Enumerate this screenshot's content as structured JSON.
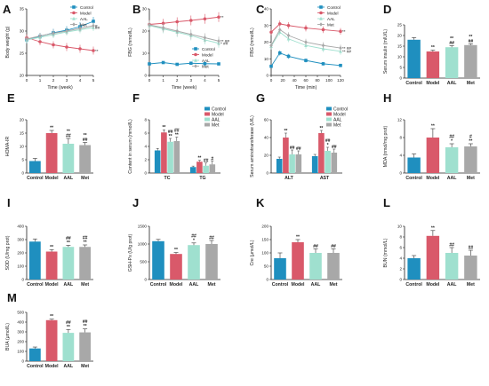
{
  "figure": {
    "colors": {
      "Control": "#1f8fbf",
      "Model": "#d9596a",
      "AAL": "#9fe0cf",
      "Met": "#a8a8a8"
    },
    "groups": [
      "Control",
      "Model",
      "AAL",
      "Met"
    ]
  },
  "chart_data": [
    {
      "panel": "A",
      "type": "line",
      "xlabel": "Time (week)",
      "ylabel": "Body weight (g)",
      "x": [
        0,
        1,
        2,
        3,
        4,
        5
      ],
      "xlim": [
        0,
        5
      ],
      "yticks": [
        20,
        25,
        30,
        35
      ],
      "ylim": [
        20,
        35
      ],
      "legend": "top-right",
      "series": [
        {
          "name": "Control",
          "values": [
            28.0,
            28.8,
            29.6,
            30.2,
            31.0,
            32.2
          ],
          "errors": [
            0.8,
            0.8,
            0.9,
            0.9,
            1.0,
            1.0
          ]
        },
        {
          "name": "Model",
          "values": [
            28.5,
            27.6,
            26.9,
            26.4,
            26.0,
            25.6
          ],
          "errors": [
            0.8,
            0.8,
            0.8,
            0.9,
            0.9,
            0.9
          ]
        },
        {
          "name": "AAL",
          "values": [
            28.0,
            28.6,
            29.2,
            29.8,
            30.3,
            30.8
          ],
          "errors": [
            0.7,
            0.7,
            0.8,
            0.8,
            0.8,
            0.8
          ]
        },
        {
          "name": "Met",
          "values": [
            28.2,
            28.9,
            29.5,
            30.0,
            30.6,
            31.2
          ],
          "errors": [
            0.7,
            0.7,
            0.8,
            0.8,
            0.8,
            0.8
          ]
        }
      ],
      "annotations": [
        {
          "series": "Model",
          "text": "**"
        },
        {
          "series": "AAL",
          "text": "##"
        },
        {
          "series": "Met",
          "text": "#"
        }
      ]
    },
    {
      "panel": "B",
      "type": "line",
      "xlabel": "Time (week)",
      "ylabel": "FBG (mmol/L)",
      "x": [
        0,
        1,
        2,
        3,
        4,
        5
      ],
      "xlim": [
        0,
        5
      ],
      "yticks": [
        0,
        10,
        20,
        30
      ],
      "ylim": [
        0,
        30
      ],
      "legend": "bottom-right",
      "series": [
        {
          "name": "Control",
          "values": [
            5.2,
            5.8,
            5.0,
            5.5,
            5.3,
            5.2
          ],
          "errors": [
            0.4,
            0.4,
            0.4,
            0.4,
            0.4,
            0.4
          ]
        },
        {
          "name": "Model",
          "values": [
            23.0,
            23.5,
            24.2,
            24.8,
            25.5,
            26.3
          ],
          "errors": [
            2.0,
            2.0,
            2.0,
            2.2,
            2.2,
            2.2
          ]
        },
        {
          "name": "AAL",
          "values": [
            22.5,
            21.0,
            19.5,
            18.0,
            16.0,
            14.5
          ],
          "errors": [
            2.0,
            2.0,
            2.2,
            2.2,
            2.0,
            2.0
          ]
        },
        {
          "name": "Met",
          "values": [
            22.8,
            21.5,
            20.0,
            18.5,
            17.0,
            15.5
          ],
          "errors": [
            2.0,
            2.0,
            2.2,
            2.2,
            2.0,
            2.0
          ]
        }
      ],
      "annotations": [
        {
          "series": "Model",
          "text": "**"
        },
        {
          "series": "AAL",
          "text": "* ##"
        },
        {
          "series": "Met",
          "text": "** ##"
        }
      ]
    },
    {
      "panel": "C",
      "type": "line",
      "xlabel": "Time (min)",
      "ylabel": "FBG (mmol/L)",
      "x": [
        0,
        15,
        30,
        60,
        90,
        120
      ],
      "xticks": [
        0,
        20,
        40,
        60,
        80,
        100,
        120
      ],
      "xlim": [
        0,
        120
      ],
      "yticks": [
        0,
        10,
        20,
        30,
        40
      ],
      "ylim": [
        0,
        40
      ],
      "legend": "top-right",
      "series": [
        {
          "name": "Control",
          "values": [
            5.5,
            13.5,
            11.5,
            9.0,
            7.0,
            6.0
          ],
          "errors": [
            1.0,
            1.5,
            1.5,
            1.2,
            1.0,
            1.0
          ]
        },
        {
          "name": "Model",
          "values": [
            26.0,
            31.0,
            30.0,
            28.5,
            27.5,
            26.5
          ],
          "errors": [
            2.0,
            2.0,
            2.0,
            2.0,
            2.0,
            2.0
          ]
        },
        {
          "name": "AAL",
          "values": [
            17.5,
            26.0,
            22.0,
            18.0,
            16.0,
            14.5
          ],
          "errors": [
            2.0,
            2.0,
            2.0,
            2.0,
            2.0,
            2.0
          ]
        },
        {
          "name": "Met",
          "values": [
            18.0,
            27.5,
            24.0,
            20.0,
            18.0,
            16.5
          ],
          "errors": [
            2.0,
            2.0,
            2.0,
            2.0,
            2.0,
            2.0
          ]
        }
      ],
      "annotations": [
        {
          "series": "Model",
          "text": "**"
        },
        {
          "series": "AAL",
          "text": "** ##"
        },
        {
          "series": "Met",
          "text": "** ##"
        }
      ]
    },
    {
      "panel": "D",
      "type": "bar",
      "ylabel": "Serum insulin (mIU/L)",
      "categories": [
        "Control",
        "Model",
        "AAL",
        "Met"
      ],
      "values": [
        18.0,
        12.5,
        14.5,
        15.5
      ],
      "errors": [
        1.0,
        0.6,
        0.7,
        0.6
      ],
      "ylim": [
        0,
        25
      ],
      "yticks": [
        0,
        5,
        10,
        15,
        20,
        25
      ],
      "marks": [
        "",
        "**",
        "**\n##",
        "**\n##"
      ]
    },
    {
      "panel": "E",
      "type": "bar",
      "ylabel": "HOMA-IR",
      "categories": [
        "Control",
        "Model",
        "AAL",
        "Met"
      ],
      "values": [
        4.5,
        15.0,
        11.0,
        10.5
      ],
      "errors": [
        1.0,
        1.0,
        2.0,
        1.0
      ],
      "ylim": [
        0,
        20
      ],
      "yticks": [
        0,
        5,
        10,
        15,
        20
      ],
      "marks": [
        "",
        "**",
        "**\n##",
        "**\n##"
      ]
    },
    {
      "panel": "F",
      "type": "bar",
      "ylabel": "Content in serum (mmol/L)",
      "categories": [
        "TC",
        "TG"
      ],
      "ylim": [
        0,
        8
      ],
      "yticks": [
        0,
        2,
        4,
        6,
        8
      ],
      "legend": "top-right",
      "series": [
        {
          "name": "Control",
          "values": [
            3.4,
            0.9
          ],
          "errors": [
            0.3,
            0.15
          ]
        },
        {
          "name": "Model",
          "values": [
            6.1,
            1.7
          ],
          "errors": [
            0.4,
            0.2
          ]
        },
        {
          "name": "AAL",
          "values": [
            4.7,
            1.1
          ],
          "errors": [
            0.5,
            0.4
          ]
        },
        {
          "name": "Met",
          "values": [
            4.8,
            1.3
          ],
          "errors": [
            0.6,
            0.5
          ]
        }
      ],
      "marks": [
        [
          "",
          "**",
          "##\n**",
          "##\n**"
        ],
        [
          "",
          "**",
          "##",
          "#"
        ]
      ]
    },
    {
      "panel": "G",
      "type": "bar",
      "ylabel": "Serum aminotransferase (U/L)",
      "categories": [
        "ALT",
        "AST"
      ],
      "ylim": [
        0,
        60
      ],
      "yticks": [
        0,
        20,
        40,
        60
      ],
      "legend": "top-right",
      "series": [
        {
          "name": "Control",
          "values": [
            16,
            19
          ],
          "errors": [
            2,
            2
          ]
        },
        {
          "name": "Model",
          "values": [
            40,
            45
          ],
          "errors": [
            5,
            3
          ]
        },
        {
          "name": "AAL",
          "values": [
            21,
            25
          ],
          "errors": [
            5,
            4
          ]
        },
        {
          "name": "Met",
          "values": [
            21,
            23
          ],
          "errors": [
            4,
            4
          ]
        }
      ],
      "marks": [
        [
          "",
          "**",
          "##",
          "##"
        ],
        [
          "",
          "**",
          "##\n*",
          "##"
        ]
      ]
    },
    {
      "panel": "H",
      "type": "bar",
      "ylabel": "MDA (nmol/mg prot)",
      "categories": [
        "Control",
        "Model",
        "AAL",
        "Met"
      ],
      "values": [
        3.5,
        8.0,
        5.8,
        6.0
      ],
      "errors": [
        0.8,
        2.0,
        0.8,
        0.6
      ],
      "ylim": [
        0,
        12
      ],
      "yticks": [
        0,
        4,
        8,
        12
      ],
      "marks": [
        "",
        "**",
        "##\n*",
        "#\n**"
      ]
    },
    {
      "panel": "I",
      "type": "bar",
      "ylabel": "SOD (U/mg prot)",
      "categories": [
        "Control",
        "Model",
        "AAL",
        "Met"
      ],
      "values": [
        285,
        210,
        245,
        245
      ],
      "errors": [
        20,
        15,
        12,
        15
      ],
      "ylim": [
        0,
        400
      ],
      "yticks": [
        0,
        100,
        200,
        300,
        400
      ],
      "marks": [
        "",
        "**",
        "##\n**",
        "##\n**"
      ]
    },
    {
      "panel": "J",
      "type": "bar",
      "ylabel": "GSH-Px (U/g prot)",
      "categories": [
        "Control",
        "Model",
        "AAL",
        "Met"
      ],
      "values": [
        1080,
        720,
        970,
        1000
      ],
      "errors": [
        50,
        40,
        60,
        100
      ],
      "ylim": [
        0,
        1500
      ],
      "yticks": [
        0,
        500,
        1000,
        1500
      ],
      "marks": [
        "",
        "**",
        "##\n*",
        "##"
      ]
    },
    {
      "panel": "K",
      "type": "bar",
      "ylabel": "Cre (μmol/L)",
      "categories": [
        "Control",
        "Model",
        "AAL",
        "Met"
      ],
      "values": [
        80,
        140,
        100,
        100
      ],
      "errors": [
        20,
        10,
        15,
        15
      ],
      "ylim": [
        0,
        200
      ],
      "yticks": [
        0,
        50,
        100,
        150,
        200
      ],
      "marks": [
        "",
        "**",
        "##",
        "##"
      ]
    },
    {
      "panel": "L",
      "type": "bar",
      "ylabel": "BUN (mmol/L)",
      "categories": [
        "Control",
        "Model",
        "AAL",
        "Met"
      ],
      "values": [
        4.0,
        8.2,
        5.0,
        4.5
      ],
      "errors": [
        0.5,
        1.0,
        1.0,
        1.0
      ],
      "ylim": [
        0,
        10
      ],
      "yticks": [
        0,
        2,
        4,
        6,
        8,
        10
      ],
      "marks": [
        "",
        "**",
        "##",
        "##"
      ]
    },
    {
      "panel": "M",
      "type": "bar",
      "ylabel": "BUA (μmol/L)",
      "categories": [
        "Control",
        "Model",
        "AAL",
        "Met"
      ],
      "values": [
        130,
        420,
        290,
        295
      ],
      "errors": [
        15,
        10,
        35,
        35
      ],
      "ylim": [
        0,
        500
      ],
      "yticks": [
        0,
        100,
        200,
        300,
        400,
        500
      ],
      "marks": [
        "",
        "**",
        "##\n**",
        "##\n**"
      ]
    }
  ]
}
